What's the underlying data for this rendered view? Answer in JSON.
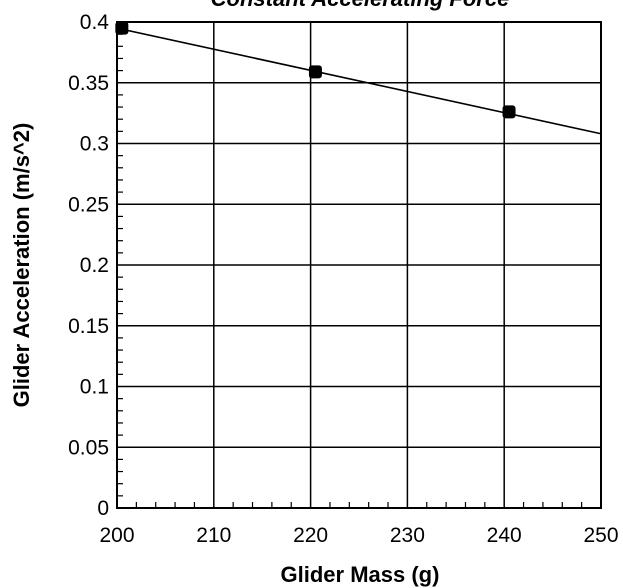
{
  "chart_data": {
    "type": "scatter",
    "title": "Constant Accelerating Force",
    "xlabel": "Glider Mass (g)",
    "ylabel": "Glider Acceleration (m/s^2)",
    "xlim": [
      200,
      250
    ],
    "ylim": [
      0,
      0.4
    ],
    "x_ticks": [
      200,
      210,
      220,
      230,
      240,
      250
    ],
    "y_ticks": [
      0,
      0.05,
      0.1,
      0.15,
      0.2,
      0.25,
      0.3,
      0.35,
      0.4
    ],
    "x_tick_labels": [
      "200",
      "210",
      "220",
      "230",
      "240",
      "250"
    ],
    "y_tick_labels": [
      "0",
      "0.05",
      "0.1",
      "0.15",
      "0.2",
      "0.25",
      "0.3",
      "0.35",
      "0.4"
    ],
    "grid": true,
    "series": [
      {
        "points": [
          {
            "x": 200.5,
            "y": 0.395
          },
          {
            "x": 220.5,
            "y": 0.359
          },
          {
            "x": 240.5,
            "y": 0.326
          }
        ]
      }
    ],
    "fit_line": [
      {
        "x": 200,
        "y": 0.395
      },
      {
        "x": 250,
        "y": 0.308
      }
    ],
    "colors": {
      "marker": "#000000",
      "line": "#000000",
      "grid": "#000000"
    }
  }
}
